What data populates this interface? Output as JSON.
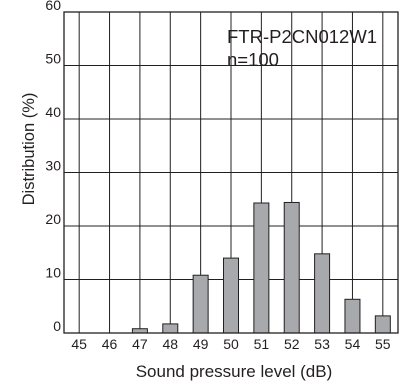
{
  "chart_data": {
    "type": "bar",
    "title": "",
    "annotations": [
      "FTR-P2CN012W1",
      "n=100"
    ],
    "xlabel": "Sound pressure level (dB)",
    "ylabel": "Distribution (%)",
    "categories": [
      "45",
      "46",
      "47",
      "48",
      "49",
      "50",
      "51",
      "52",
      "53",
      "54",
      "55"
    ],
    "values": [
      0,
      0,
      0.8,
      1.7,
      10.8,
      14.0,
      24.3,
      24.4,
      14.8,
      6.3,
      3.2
    ],
    "ylim": [
      0,
      60
    ],
    "yticks": [
      0,
      10,
      20,
      30,
      40,
      50,
      60
    ],
    "grid": true,
    "legend": "none",
    "colors": {
      "bar": "#a7a9ac",
      "outline": "#231f20",
      "grid": "#231f20"
    }
  }
}
